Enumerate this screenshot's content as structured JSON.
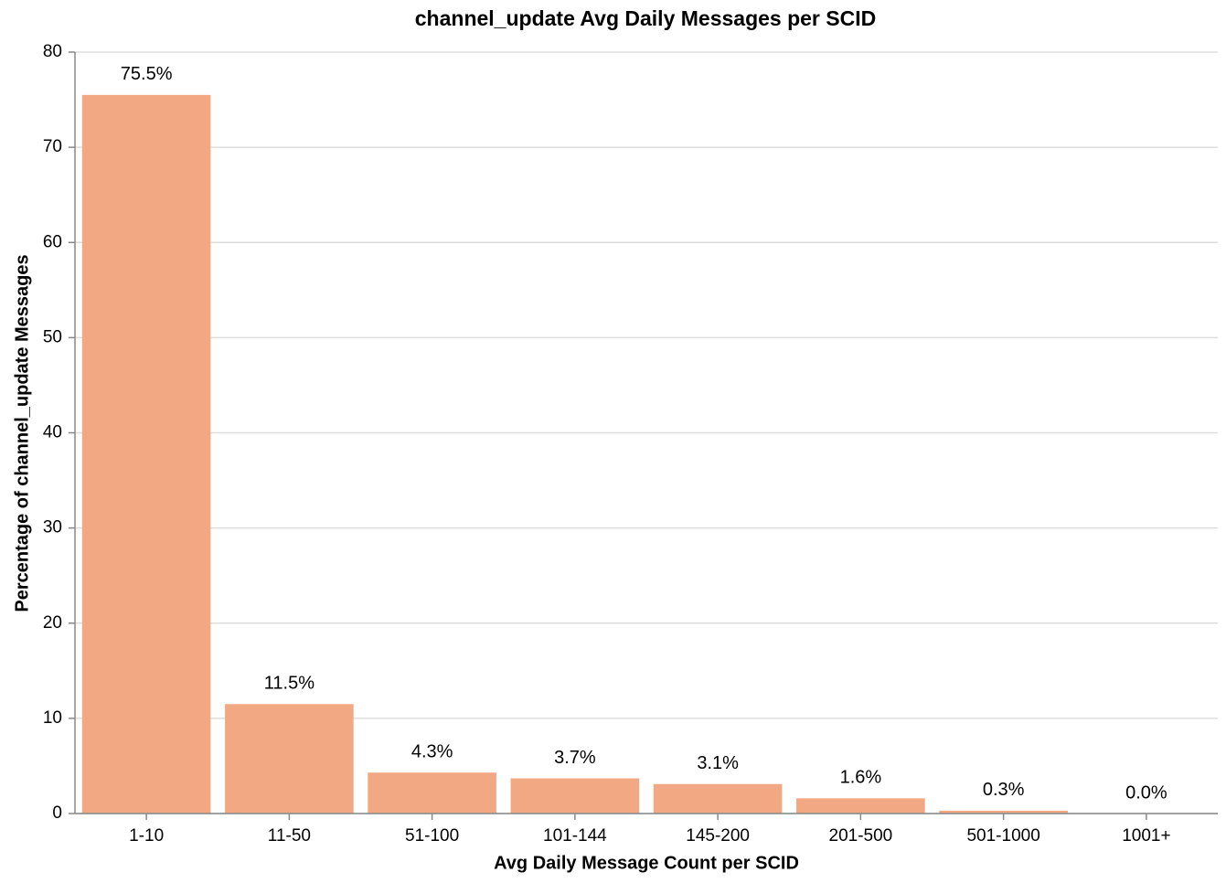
{
  "chart_data": {
    "type": "bar",
    "title": "channel_update Avg Daily Messages per SCID",
    "x_label": "Avg Daily Message Count per SCID",
    "y_label": "Percentage of channel_update Messages",
    "categories": [
      "1-10",
      "11-50",
      "51-100",
      "101-144",
      "145-200",
      "201-500",
      "501-1000",
      "1001+"
    ],
    "values": [
      75.5,
      11.5,
      4.3,
      3.7,
      3.1,
      1.6,
      0.3,
      0.0
    ],
    "value_labels": [
      "75.5%",
      "11.5%",
      "4.3%",
      "3.7%",
      "3.1%",
      "1.6%",
      "0.3%",
      "0.0%"
    ],
    "color": "#f2a882",
    "ylim": [
      0,
      80
    ],
    "yticks": [
      0,
      10,
      20,
      30,
      40,
      50,
      60,
      70,
      80
    ],
    "grid": true
  }
}
